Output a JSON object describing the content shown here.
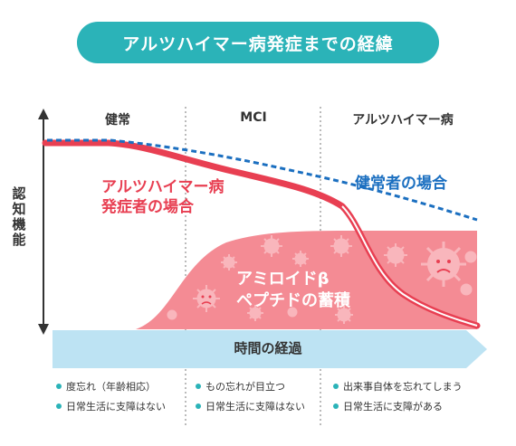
{
  "title": "アルツハイマー病発症までの経緯",
  "y_axis_label": "認知機能",
  "x_axis_label": "時間の経過",
  "phases": [
    "健常",
    "MCI",
    "アルツハイマー病"
  ],
  "curves": {
    "healthy": "健常者の場合",
    "alzheimer_line1": "アルツハイマー病",
    "alzheimer_line2": "発症者の場合"
  },
  "amyloid": {
    "line1": "アミロイドβ",
    "line2": "ペプチドの蓄積"
  },
  "notes": {
    "healthy": [
      "度忘れ（年齢相応）",
      "日常生活に支障はない"
    ],
    "mci": [
      "もの忘れが目立つ",
      "日常生活に支障はない"
    ],
    "alzheimer": [
      "出来事自体を忘れてしまう",
      "日常生活に支障がある"
    ]
  },
  "colors": {
    "teal": "#2bb3b8",
    "red": "#e83f52",
    "pink": "#f48b94",
    "blue": "#1b6fc0",
    "arrow": "#bde3f3"
  },
  "icons": [
    "virus-icon",
    "frown-face-icon"
  ]
}
